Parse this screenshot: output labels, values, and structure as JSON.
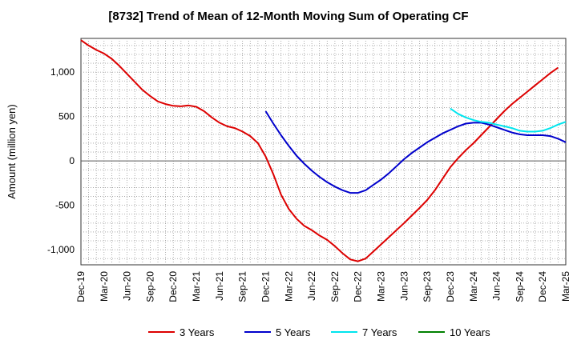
{
  "chart_data": {
    "type": "line",
    "title": "[8732]  Trend of Mean of 12-Month Moving Sum of Operating CF",
    "xlabel": "",
    "ylabel": "Amount (million yen)",
    "ylim": [
      -1170,
      1380
    ],
    "grid": true,
    "legend_position": "bottom",
    "x_ticks": [
      "Dec-19",
      "Mar-20",
      "Jun-20",
      "Sep-20",
      "Dec-20",
      "Mar-21",
      "Jun-21",
      "Sep-21",
      "Dec-21",
      "Mar-22",
      "Jun-22",
      "Sep-22",
      "Dec-22",
      "Mar-23",
      "Jun-23",
      "Sep-23",
      "Dec-23",
      "Mar-24",
      "Jun-24",
      "Sep-24",
      "Dec-24",
      "Mar-25"
    ],
    "y_ticks": [
      {
        "value": 1000,
        "label": "1,000"
      },
      {
        "value": 500,
        "label": "500"
      },
      {
        "value": 0,
        "label": "0"
      },
      {
        "value": -500,
        "label": "-500"
      },
      {
        "value": -1000,
        "label": "-1,000"
      }
    ],
    "series": [
      {
        "name": "3 Years",
        "color": "#dd0000",
        "start_index": 0,
        "values": [
          1360,
          1300,
          1250,
          1210,
          1150,
          1070,
          980,
          890,
          800,
          730,
          670,
          640,
          620,
          615,
          625,
          610,
          560,
          490,
          430,
          390,
          370,
          330,
          280,
          200,
          50,
          -150,
          -380,
          -540,
          -650,
          -730,
          -780,
          -840,
          -890,
          -960,
          -1040,
          -1110,
          -1130,
          -1100,
          -1020,
          -940,
          -860,
          -780,
          -700,
          -615,
          -530,
          -440,
          -330,
          -200,
          -70,
          30,
          120,
          200,
          290,
          380,
          470,
          560,
          640,
          710,
          780,
          850,
          920,
          990,
          1050
        ]
      },
      {
        "name": "5 Years",
        "color": "#0000cc",
        "start_index": 24,
        "values": [
          560,
          420,
          290,
          170,
          60,
          -30,
          -110,
          -180,
          -240,
          -290,
          -330,
          -360,
          -360,
          -330,
          -270,
          -210,
          -140,
          -60,
          20,
          90,
          150,
          210,
          260,
          310,
          350,
          390,
          420,
          430,
          430,
          410,
          380,
          350,
          320,
          300,
          290,
          290,
          290,
          280,
          250,
          210
        ]
      },
      {
        "name": "7 Years",
        "color": "#00e5ee",
        "start_index": 48,
        "values": [
          590,
          530,
          490,
          460,
          440,
          430,
          410,
          390,
          370,
          340,
          330,
          330,
          340,
          370,
          410,
          440
        ]
      },
      {
        "name": "10 Years",
        "color": "#008000",
        "start_index": 0,
        "values": []
      }
    ]
  }
}
